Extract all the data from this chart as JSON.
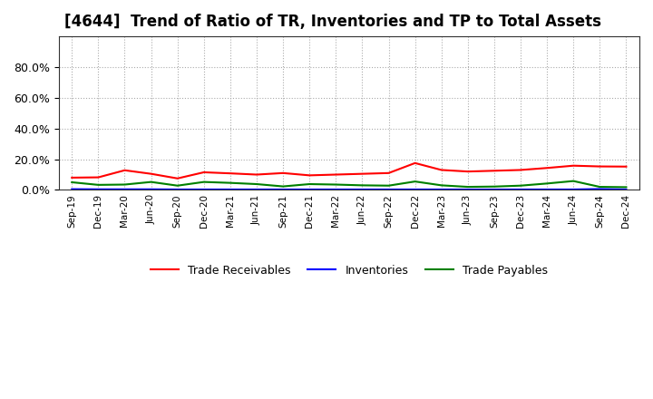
{
  "title": "[4644]  Trend of Ratio of TR, Inventories and TP to Total Assets",
  "x_labels": [
    "Sep-19",
    "Dec-19",
    "Mar-20",
    "Jun-20",
    "Sep-20",
    "Dec-20",
    "Mar-21",
    "Jun-21",
    "Sep-21",
    "Dec-21",
    "Mar-22",
    "Jun-22",
    "Sep-22",
    "Dec-22",
    "Mar-23",
    "Jun-23",
    "Sep-23",
    "Dec-23",
    "Mar-24",
    "Jun-24",
    "Sep-24",
    "Dec-24"
  ],
  "trade_receivables": [
    0.08,
    0.082,
    0.128,
    0.105,
    0.075,
    0.115,
    0.108,
    0.1,
    0.11,
    0.095,
    0.1,
    0.105,
    0.11,
    0.175,
    0.13,
    0.12,
    0.125,
    0.13,
    0.143,
    0.158,
    0.153,
    0.152
  ],
  "inventories": [
    0.005,
    0.004,
    0.004,
    0.004,
    0.003,
    0.003,
    0.003,
    0.003,
    0.003,
    0.003,
    0.003,
    0.003,
    0.003,
    0.003,
    0.003,
    0.003,
    0.003,
    0.003,
    0.003,
    0.003,
    0.006,
    0.003
  ],
  "trade_payables": [
    0.05,
    0.033,
    0.035,
    0.052,
    0.028,
    0.052,
    0.046,
    0.038,
    0.023,
    0.038,
    0.035,
    0.03,
    0.028,
    0.055,
    0.03,
    0.02,
    0.022,
    0.028,
    0.042,
    0.058,
    0.02,
    0.018
  ],
  "tr_color": "#ff0000",
  "inv_color": "#0000ff",
  "tp_color": "#008000",
  "ylim": [
    0.0,
    1.0
  ],
  "yticks": [
    0.0,
    0.2,
    0.4,
    0.6,
    0.8
  ],
  "background_color": "#ffffff",
  "grid_color": "#aaaaaa",
  "title_fontsize": 12,
  "legend_labels": [
    "Trade Receivables",
    "Inventories",
    "Trade Payables"
  ]
}
